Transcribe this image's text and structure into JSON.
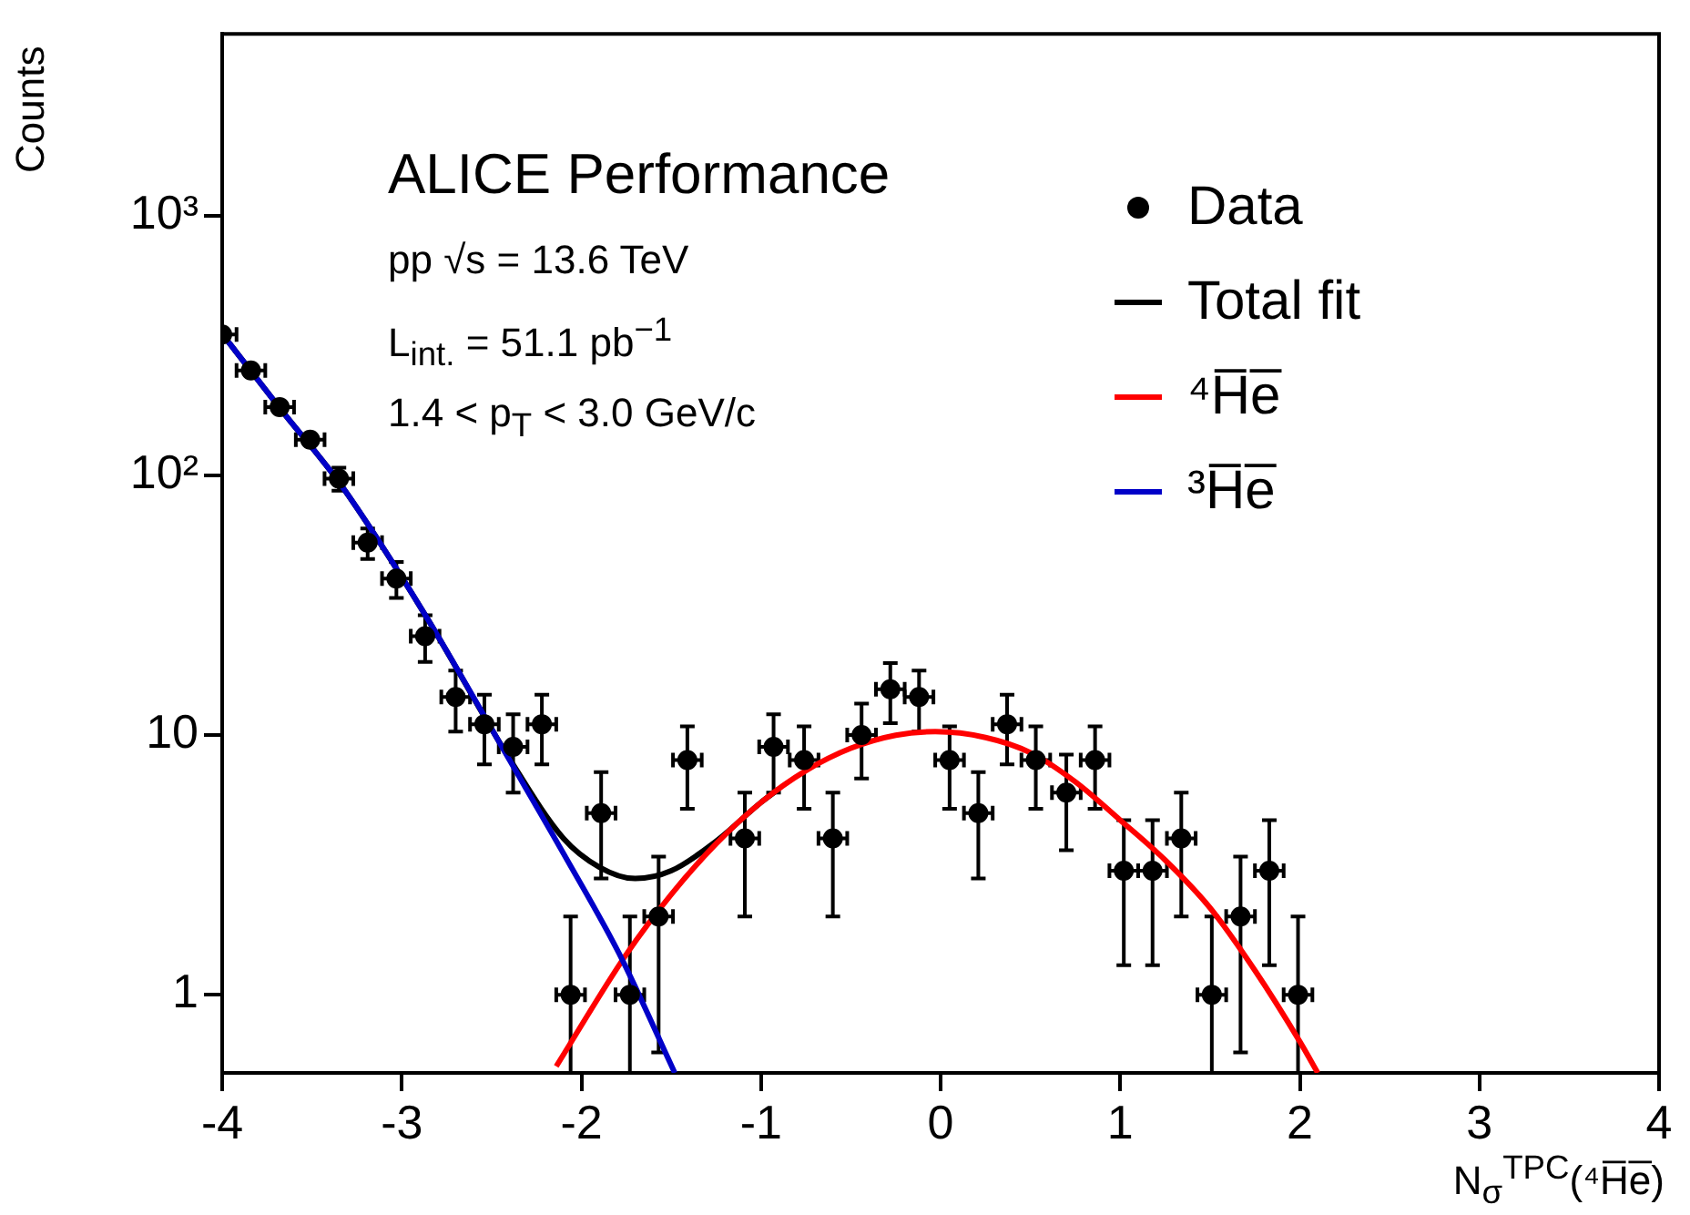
{
  "chart_data": {
    "type": "scatter",
    "xlabel": "N$_{σ}$$^{TPC}$(⁴H̅e̅)",
    "ylabel": "Counts",
    "annotations": [
      "ALICE Performance",
      "pp √s = 13.6 TeV",
      "L$_{int.}$ = 51.1 pb$^{−1}$",
      "1.4 < p$_{T}$ < 3.0 GeV/c"
    ],
    "xlim": [
      -4,
      4
    ],
    "xticks": [
      -4,
      -3,
      -2,
      -1,
      0,
      1,
      2,
      3,
      4
    ],
    "ylim": [
      0.5,
      5000
    ],
    "yticks": [
      1,
      10,
      {
        "value": 100,
        "label": "10²"
      },
      {
        "value": 1000,
        "label": "10³"
      }
    ],
    "log": "y",
    "grid": false,
    "legend": "top right",
    "series": [
      {
        "name": "Data",
        "type": "scatter",
        "marker": "circle",
        "color": "#000000",
        "x": [
          -4.0,
          -3.84,
          -3.68,
          -3.51,
          -3.35,
          -3.19,
          -3.03,
          -2.87,
          -2.7,
          -2.54,
          -2.38,
          -2.22,
          -2.06,
          -1.89,
          -1.73,
          -1.57,
          -1.41,
          -1.09,
          -0.93,
          -0.76,
          -0.6,
          -0.44,
          -0.28,
          -0.12,
          0.05,
          0.21,
          0.37,
          0.53,
          0.7,
          0.86,
          1.02,
          1.18,
          1.34,
          1.51,
          1.67,
          1.83,
          1.99
        ],
        "values": [
          348,
          253,
          183,
          137,
          97,
          55,
          40,
          24,
          14,
          11,
          9,
          11,
          1,
          5,
          1,
          2,
          8,
          4,
          9,
          8,
          4,
          10,
          15,
          14,
          8,
          5,
          11,
          8,
          6,
          8,
          3,
          3,
          4,
          1,
          2,
          3,
          1
        ],
        "errors": [
          null,
          null,
          null,
          null,
          9.8,
          7.4,
          6.3,
          4.9,
          3.7,
          3.3,
          3,
          3.3,
          [
            0.5,
            2
          ],
          2.2,
          [
            0.5,
            2
          ],
          1.4,
          2.8,
          2,
          3,
          2.8,
          2,
          3.2,
          3.9,
          3.7,
          2.8,
          2.2,
          3.3,
          2.8,
          2.4,
          2.8,
          1.7,
          1.7,
          2,
          [
            0.5,
            2
          ],
          1.4,
          1.7,
          [
            0.5,
            2
          ]
        ],
        "xerrors": [
          [
            -4.0,
            -3.92
          ],
          0.08,
          0.08,
          0.08,
          0.08,
          0.08,
          0.08,
          0.08,
          0.08,
          0.08,
          0.08,
          0.08,
          0.08,
          0.08,
          0.08,
          0.08,
          0.08,
          0.08,
          0.08,
          0.08,
          0.08,
          0.08,
          0.08,
          0.08,
          0.08,
          0.08,
          0.08,
          0.08,
          0.08,
          0.08,
          0.08,
          0.08,
          0.08,
          0.08,
          0.08,
          0.08,
          0.08
        ]
      },
      {
        "name": "Total fit",
        "type": "line",
        "color": "#000000",
        "line_style": "solid",
        "x": [
          -4,
          -3.67,
          -3.34,
          -2.87,
          -2.4,
          -2.1,
          -1.9,
          -1.7,
          -1.5,
          -1.25,
          -1.0,
          -0.9
        ],
        "values": [
          350,
          178,
          92,
          29,
          8.1,
          4.0,
          3.1,
          2.8,
          3.0,
          3.9,
          5.5,
          6.2
        ]
      },
      {
        "name": "⁴H̅e̅",
        "type": "line",
        "color": "#ff0000",
        "line_style": "solid",
        "x": [
          -2.14,
          -1.75,
          -1.5,
          -1.25,
          -1.0,
          -0.75,
          -0.5,
          -0.25,
          -0.03,
          0.25,
          0.5,
          0.75,
          1.0,
          1.25,
          1.5,
          1.75,
          2.0,
          2.1
        ],
        "values": [
          0.53,
          1.43,
          2.43,
          3.81,
          5.5,
          7.29,
          8.89,
          9.98,
          10.3,
          9.78,
          8.55,
          6.6,
          4.7,
          3.3,
          2.16,
          1.24,
          0.66,
          0.5
        ]
      },
      {
        "name": "³H̅e̅",
        "type": "line",
        "color": "#0000c8",
        "line_style": "solid",
        "x": [
          -4,
          -3.67,
          -3.34,
          -2.87,
          -2.4,
          -2.1,
          -1.79,
          -1.48
        ],
        "values": [
          350,
          178,
          92,
          29,
          8,
          3.5,
          1.44,
          0.5
        ]
      }
    ]
  }
}
